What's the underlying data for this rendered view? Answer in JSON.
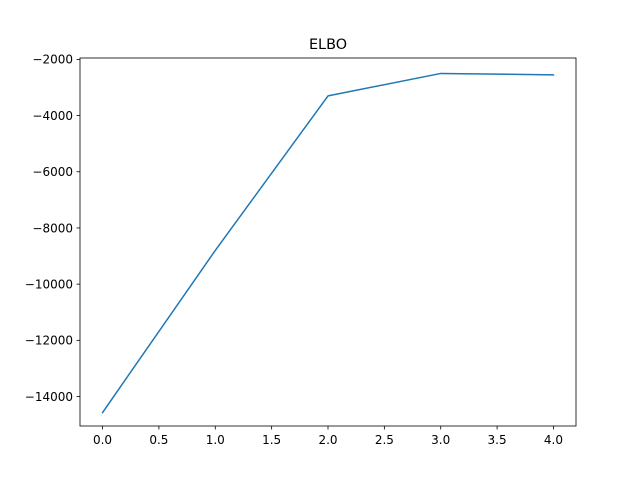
{
  "chart_data": {
    "type": "line",
    "title": "ELBO",
    "xlabel": "",
    "ylabel": "",
    "x": [
      0,
      1,
      2,
      3,
      4
    ],
    "series": [
      {
        "values": [
          -14570,
          -8800,
          -3300,
          -2500,
          -2550
        ],
        "color": "#1f77b4"
      }
    ],
    "xlim": [
      -0.2,
      4.2
    ],
    "ylim": [
      -15050,
      -1950
    ],
    "xticks": [
      0.0,
      0.5,
      1.0,
      1.5,
      2.0,
      2.5,
      3.0,
      3.5,
      4.0
    ],
    "xtick_labels": [
      "0.0",
      "0.5",
      "1.0",
      "1.5",
      "2.0",
      "2.5",
      "3.0",
      "3.5",
      "4.0"
    ],
    "yticks": [
      -14000,
      -12000,
      -10000,
      -8000,
      -6000,
      -4000,
      -2000
    ],
    "ytick_labels": [
      "−14000",
      "−12000",
      "−10000",
      "−8000",
      "−6000",
      "−4000",
      "−2000"
    ],
    "grid": false,
    "legend": "none"
  }
}
